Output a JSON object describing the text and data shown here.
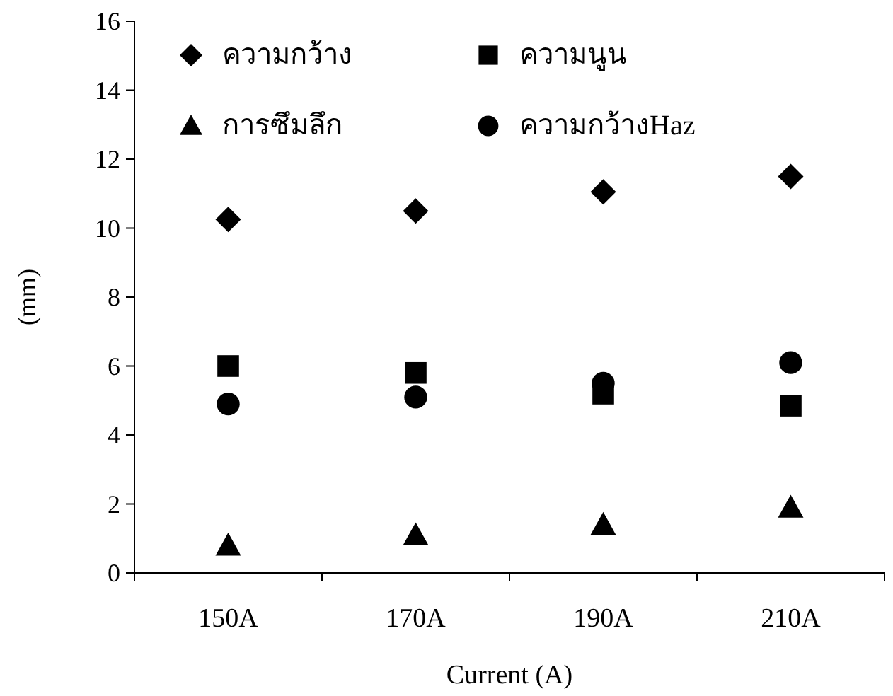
{
  "chart_data": {
    "type": "scatter",
    "xlabel": "Current (A)",
    "ylabel": "(mm)",
    "categories": [
      "150A",
      "170A",
      "190A",
      "210A"
    ],
    "ylim": [
      0,
      16
    ],
    "yticks": [
      0,
      2,
      4,
      6,
      8,
      10,
      12,
      14,
      16
    ],
    "grid": false,
    "legend": "top",
    "series": [
      {
        "name": "ความกว้าง",
        "color": "#000000",
        "marker": "diamond",
        "values": [
          10.25,
          10.5,
          11.05,
          11.5
        ]
      },
      {
        "name": "ความนูน",
        "color": "#000000",
        "marker": "square",
        "values": [
          6.0,
          5.8,
          5.2,
          4.85
        ]
      },
      {
        "name": "การซึมลึก",
        "color": "#000000",
        "marker": "triangle",
        "values": [
          0.8,
          1.1,
          1.4,
          1.9
        ]
      },
      {
        "name": "ความกว้างHaz",
        "color": "#000000",
        "marker": "circle",
        "values": [
          4.9,
          5.1,
          5.5,
          6.1
        ]
      }
    ]
  }
}
